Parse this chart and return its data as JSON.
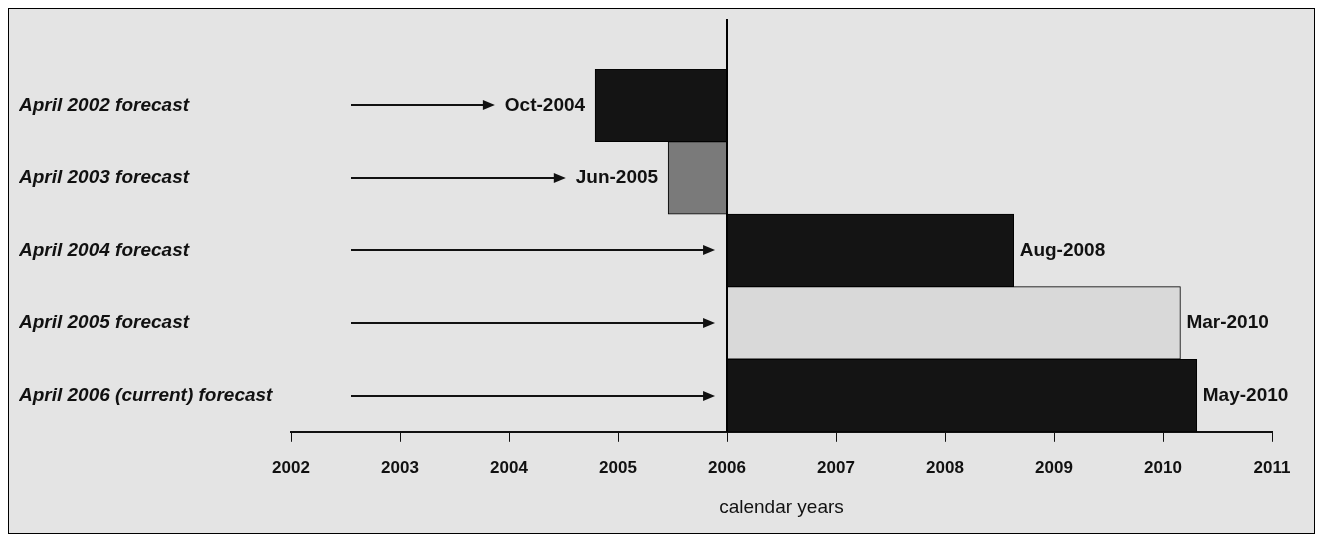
{
  "chart_data": {
    "type": "bar",
    "orientation": "horizontal",
    "xlabel": "calendar years",
    "categories": [
      "April 2002 forecast",
      "April 2003 forecast",
      "April 2004 forecast",
      "April 2005 forecast",
      "April 2006 (current) forecast"
    ],
    "base": [
      2006,
      2006,
      2006,
      2006,
      2006
    ],
    "values": [
      -1.21,
      -0.54,
      2.63,
      4.16,
      4.31
    ],
    "value_labels": [
      "Oct-2004",
      "Jun-2005",
      "Aug-2008",
      "Mar-2010",
      "May-2010"
    ],
    "colors": [
      "#141414",
      "#7a7a7a",
      "#141414",
      "#d9d9d9",
      "#141414"
    ],
    "xlim": [
      2002,
      2011
    ],
    "xticks": [
      2002,
      2003,
      2004,
      2005,
      2006,
      2007,
      2008,
      2009,
      2010,
      2011
    ],
    "ref_lines": [
      {
        "axis": "x",
        "value": 2006,
        "color": "#000000"
      }
    ],
    "grid": false,
    "legend": false
  }
}
